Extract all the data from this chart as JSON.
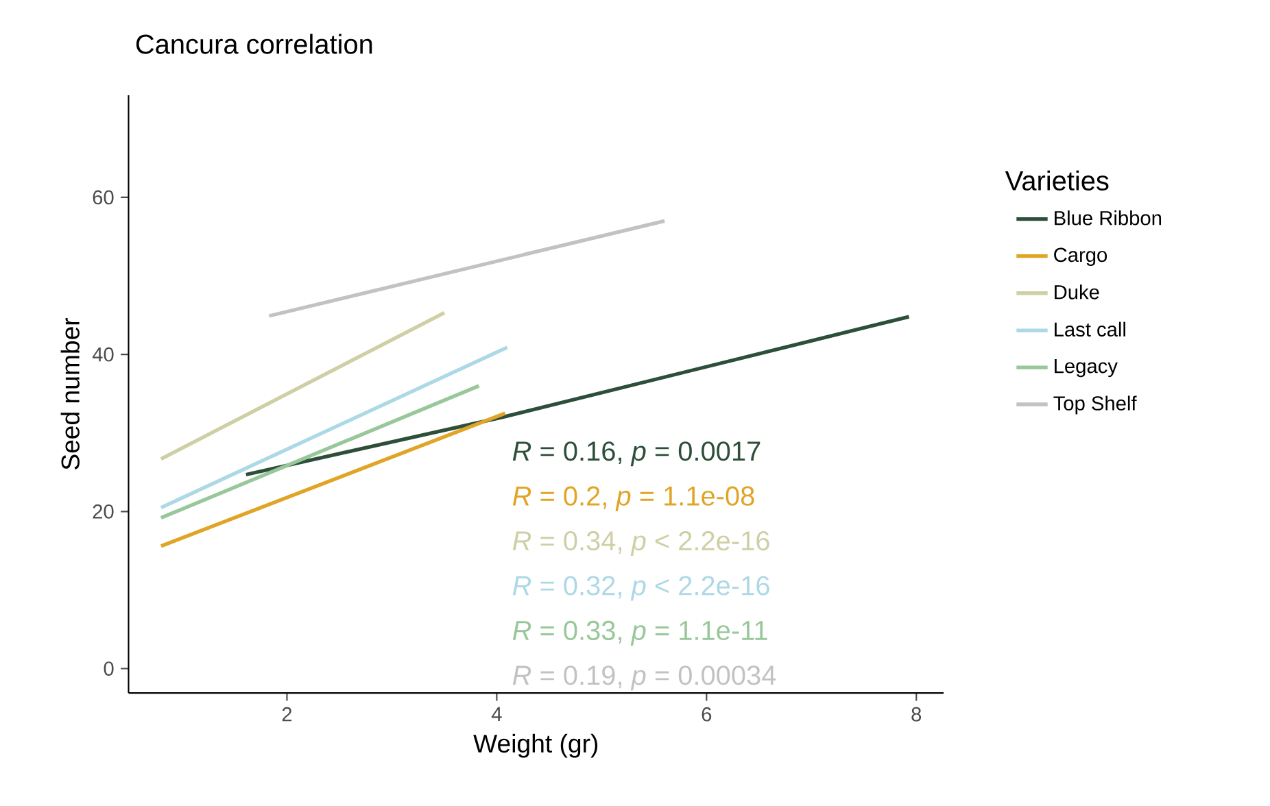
{
  "chart_data": {
    "type": "line",
    "title": "Cancura correlation",
    "xlabel": "Weight (gr)",
    "ylabel": "Seed number",
    "legend_title": "Varieties",
    "series": [
      {
        "name": "Blue Ribbon",
        "color": "#2d4f3a",
        "x": [
          1.61,
          4.05,
          7.93
        ],
        "values": [
          24.7,
          32,
          44.8
        ]
      },
      {
        "name": "Cargo",
        "color": "#e0a526",
        "x": [
          0.8,
          4.08
        ],
        "values": [
          15.6,
          32.5
        ]
      },
      {
        "name": "Duke",
        "color": "#cfcfa6",
        "x": [
          0.8,
          3.5
        ],
        "values": [
          26.7,
          45.3
        ]
      },
      {
        "name": "Last call",
        "color": "#add8e6",
        "x": [
          0.8,
          4.1
        ],
        "values": [
          20.5,
          40.9
        ]
      },
      {
        "name": "Legacy",
        "color": "#98c79a",
        "x": [
          0.8,
          3.83
        ],
        "values": [
          19.2,
          36.0
        ]
      },
      {
        "name": "Top Shelf",
        "color": "#c2c2c2",
        "x": [
          1.83,
          5.6
        ],
        "values": [
          44.9,
          57
        ]
      }
    ],
    "annotations": [
      "*R* = 0.16, *p* = 0.0017",
      "*R* = 0.2, *p* = 1.1e-08",
      "*R* = 0.34, *p* < 2.2e-16",
      "*R* = 0.32, *p* < 2.2e-16",
      "*R* = 0.33, *p* = 1.1e-11",
      "*R* = 0.19, *p* = 0.00034"
    ],
    "xlim": [
      0.49,
      8.26
    ],
    "ylim": [
      -3.1,
      73
    ],
    "xticks": [
      2,
      4,
      6,
      8
    ],
    "yticks": [
      0,
      20,
      40,
      60
    ],
    "grid": false,
    "legend": "right",
    "marker": "none",
    "line_style": "solid"
  }
}
